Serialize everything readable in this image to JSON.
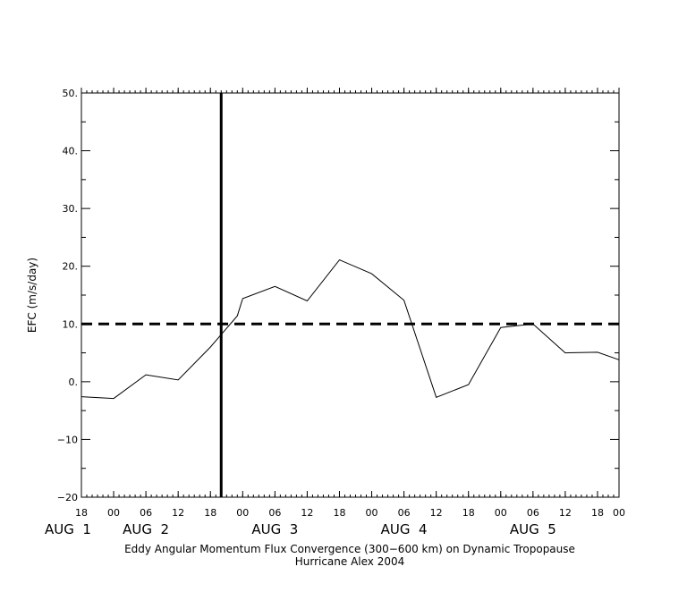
{
  "chart_data": {
    "type": "line",
    "title": "Eddy Angular Momentum Flux Convergence (300−600 km) on Dynamic Tropopause",
    "subtitle": "Hurricane Alex 2004",
    "ylabel": "EFC (m/s/day)",
    "xlabel": "",
    "ylim": [
      -20,
      50
    ],
    "xlim": [
      0,
      100
    ],
    "x_unit": "hours since AUG 1 18 UTC",
    "y_ticks": [
      {
        "value": 50,
        "label": "50."
      },
      {
        "value": 40,
        "label": "40."
      },
      {
        "value": 30,
        "label": "30."
      },
      {
        "value": 20,
        "label": "20."
      },
      {
        "value": 10,
        "label": "10."
      },
      {
        "value": 0,
        "label": "0."
      },
      {
        "value": -10,
        "label": "−10"
      },
      {
        "value": -20,
        "label": "−20"
      }
    ],
    "x_ticks": [
      {
        "value": 0,
        "label": "18"
      },
      {
        "value": 6,
        "label": "00"
      },
      {
        "value": 12,
        "label": "06"
      },
      {
        "value": 18,
        "label": "12"
      },
      {
        "value": 24,
        "label": "18"
      },
      {
        "value": 30,
        "label": "00"
      },
      {
        "value": 36,
        "label": "06"
      },
      {
        "value": 42,
        "label": "12"
      },
      {
        "value": 48,
        "label": "18"
      },
      {
        "value": 54,
        "label": "00"
      },
      {
        "value": 60,
        "label": "06"
      },
      {
        "value": 66,
        "label": "12"
      },
      {
        "value": 72,
        "label": "18"
      },
      {
        "value": 78,
        "label": "00"
      },
      {
        "value": 84,
        "label": "06"
      },
      {
        "value": 90,
        "label": "12"
      },
      {
        "value": 96,
        "label": "18"
      },
      {
        "value": 100,
        "label": "00"
      }
    ],
    "date_labels": [
      {
        "value": -2.5,
        "label": "AUG  1"
      },
      {
        "value": 12,
        "label": "AUG  2"
      },
      {
        "value": 36,
        "label": "AUG  3"
      },
      {
        "value": 60,
        "label": "AUG  4"
      },
      {
        "value": 84,
        "label": "AUG  5"
      }
    ],
    "series": [
      {
        "x": [
          0,
          6,
          12,
          18,
          24,
          29,
          30,
          36,
          42,
          48,
          54,
          60,
          66,
          72,
          78,
          84,
          90,
          96,
          100
        ],
        "y": [
          -2.6,
          -2.9,
          1.2,
          0.3,
          6.0,
          11.4,
          14.4,
          16.5,
          14.0,
          21.1,
          18.7,
          14.1,
          -2.7,
          -0.5,
          9.4,
          10.0,
          5.0,
          5.1,
          3.8
        ],
        "color": "#000000"
      }
    ],
    "reference_lines": [
      {
        "orientation": "horizontal",
        "value": 10,
        "style": "dashed"
      },
      {
        "orientation": "vertical",
        "value": 26,
        "style": "solid"
      }
    ],
    "grid": false,
    "legend": "none"
  }
}
